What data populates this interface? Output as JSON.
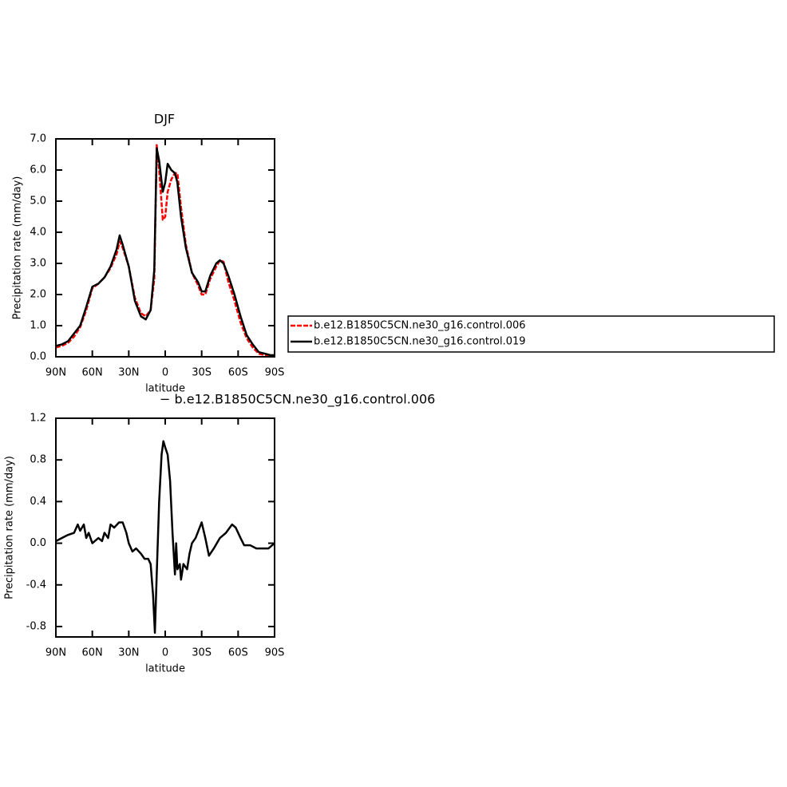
{
  "chart_data": [
    {
      "type": "line",
      "title": "DJF",
      "xlabel": "latitude",
      "ylabel": "Precipitation rate (mm/day)",
      "x": [
        90,
        85,
        80,
        75,
        70,
        65,
        60,
        55,
        50,
        45,
        40,
        37.5,
        35,
        30,
        25,
        20,
        16,
        12,
        9,
        7,
        5,
        2,
        0,
        -2,
        -5,
        -8,
        -10,
        -13,
        -17,
        -22,
        -27,
        -30,
        -33,
        -37,
        -42,
        -45,
        -48,
        -52,
        -57,
        -62,
        -67,
        -72,
        -77,
        -82,
        -87,
        -90
      ],
      "series": [
        {
          "name": "b.e12.B1850C5CN.ne30_g16.control.006",
          "color": "#ff0000",
          "line_style": "dashed",
          "values": [
            0.3,
            0.35,
            0.45,
            0.65,
            0.95,
            1.5,
            2.2,
            2.35,
            2.55,
            2.85,
            3.3,
            3.7,
            3.5,
            2.9,
            1.9,
            1.4,
            1.3,
            1.5,
            2.5,
            6.8,
            6.0,
            4.4,
            4.5,
            5.3,
            5.7,
            5.9,
            5.9,
            4.8,
            3.6,
            2.7,
            2.3,
            2.0,
            2.0,
            2.5,
            2.9,
            3.1,
            3.05,
            2.4,
            1.8,
            1.1,
            0.6,
            0.3,
            0.1,
            0.05,
            0.05,
            0.05
          ]
        },
        {
          "name": "b.e12.B1850C5CN.ne30_g16.control.019",
          "color": "#000000",
          "line_style": "solid",
          "values": [
            0.35,
            0.4,
            0.5,
            0.75,
            1.0,
            1.6,
            2.25,
            2.35,
            2.55,
            2.9,
            3.45,
            3.9,
            3.6,
            2.9,
            1.8,
            1.3,
            1.2,
            1.5,
            2.8,
            6.7,
            6.3,
            5.3,
            5.6,
            6.2,
            6.0,
            5.9,
            5.6,
            4.5,
            3.5,
            2.7,
            2.4,
            2.1,
            2.1,
            2.6,
            3.0,
            3.1,
            3.0,
            2.6,
            2.0,
            1.3,
            0.7,
            0.4,
            0.15,
            0.1,
            0.05,
            0.05
          ]
        }
      ],
      "xlim": [
        90,
        -90
      ],
      "xticks": [
        {
          "value": 90,
          "label": "90N"
        },
        {
          "value": 60,
          "label": "60N"
        },
        {
          "value": 30,
          "label": "30N"
        },
        0,
        {
          "value": -30,
          "label": "30S"
        },
        {
          "value": -60,
          "label": "60S"
        },
        {
          "value": -90,
          "label": "90S"
        }
      ],
      "ylim": [
        0,
        7
      ],
      "yticks": [
        {
          "value": 0,
          "label": "0.0"
        },
        {
          "value": 1,
          "label": "1.0"
        },
        {
          "value": 2,
          "label": "2.0"
        },
        {
          "value": 3,
          "label": "3.0"
        },
        {
          "value": 4,
          "label": "4.0"
        },
        {
          "value": 5,
          "label": "5.0"
        },
        {
          "value": 6,
          "label": "6.0"
        },
        {
          "value": 7,
          "label": "7.0"
        }
      ],
      "legend": "outside-right"
    },
    {
      "type": "line",
      "title": "− b.e12.B1850C5CN.ne30_g16.control.006",
      "xlabel": "latitude",
      "ylabel": "Precipitation rate (mm/day)",
      "x": [
        90,
        85,
        80,
        75,
        72,
        70,
        67,
        65,
        63,
        60,
        55,
        52,
        50,
        47,
        45,
        42,
        38,
        35,
        32,
        30,
        27,
        24,
        20,
        17,
        14,
        12,
        10,
        8.5,
        7,
        5,
        3,
        1.5,
        0,
        -2,
        -4,
        -6,
        -8,
        -9,
        -10,
        -12,
        -13,
        -15,
        -18,
        -20,
        -22,
        -25,
        -30,
        -33,
        -36,
        -40,
        -45,
        -50,
        -55,
        -58,
        -62,
        -65,
        -70,
        -75,
        -80,
        -85,
        -90
      ],
      "values": [
        0.02,
        0.05,
        0.08,
        0.1,
        0.18,
        0.12,
        0.18,
        0.05,
        0.1,
        0.0,
        0.05,
        0.02,
        0.1,
        0.05,
        0.18,
        0.15,
        0.2,
        0.2,
        0.1,
        0.0,
        -0.08,
        -0.05,
        -0.1,
        -0.15,
        -0.15,
        -0.2,
        -0.5,
        -0.86,
        -0.3,
        0.4,
        0.85,
        0.98,
        0.92,
        0.85,
        0.6,
        0.1,
        -0.3,
        0.0,
        -0.25,
        -0.2,
        -0.35,
        -0.2,
        -0.25,
        -0.1,
        0.0,
        0.05,
        0.2,
        0.05,
        -0.12,
        -0.05,
        0.05,
        0.1,
        0.18,
        0.15,
        0.05,
        -0.02,
        -0.02,
        -0.05,
        -0.05,
        -0.05,
        0.0
      ],
      "color": "#000000",
      "xlim": [
        90,
        -90
      ],
      "xticks": [
        {
          "value": 90,
          "label": "90N"
        },
        {
          "value": 60,
          "label": "60N"
        },
        {
          "value": 30,
          "label": "30N"
        },
        0,
        {
          "value": -30,
          "label": "30S"
        },
        {
          "value": -60,
          "label": "60S"
        },
        {
          "value": -90,
          "label": "90S"
        }
      ],
      "ylim": [
        -0.9,
        1.2
      ],
      "yticks": [
        -0.8,
        -0.4,
        {
          "value": 0,
          "label": "0.0"
        },
        0.4,
        0.8,
        1.2
      ]
    }
  ]
}
